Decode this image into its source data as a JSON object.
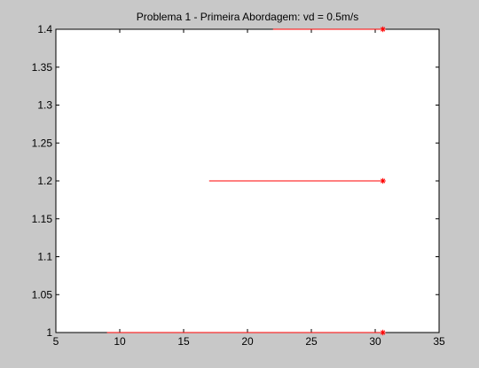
{
  "chart_data": {
    "type": "line",
    "title": "Problema 1 - Primeira Abordagem: vd = 0.5m/s",
    "xlabel": "",
    "ylabel": "",
    "xlim": [
      5,
      35
    ],
    "ylim": [
      1,
      1.4
    ],
    "x_ticks": [
      "5",
      "10",
      "15",
      "20",
      "25",
      "30",
      "35"
    ],
    "y_ticks": [
      "1",
      "1.05",
      "1.1",
      "1.15",
      "1.2",
      "1.25",
      "1.3",
      "1.35",
      "1.4"
    ],
    "grid": false,
    "series": [
      {
        "values": [
          [
            9,
            1.0
          ],
          [
            30.6,
            1.0
          ]
        ],
        "end_marker": "*",
        "color": "#ff0000"
      },
      {
        "values": [
          [
            17,
            1.2
          ],
          [
            30.6,
            1.2
          ]
        ],
        "end_marker": "*",
        "color": "#ff0000"
      },
      {
        "values": [
          [
            22,
            1.4
          ],
          [
            30.6,
            1.4
          ]
        ],
        "end_marker": "*",
        "color": "#ff0000"
      }
    ]
  },
  "colors": {
    "figure_background": "#c8c8c8",
    "axes_background": "#ffffff",
    "line": "#ff0000"
  }
}
